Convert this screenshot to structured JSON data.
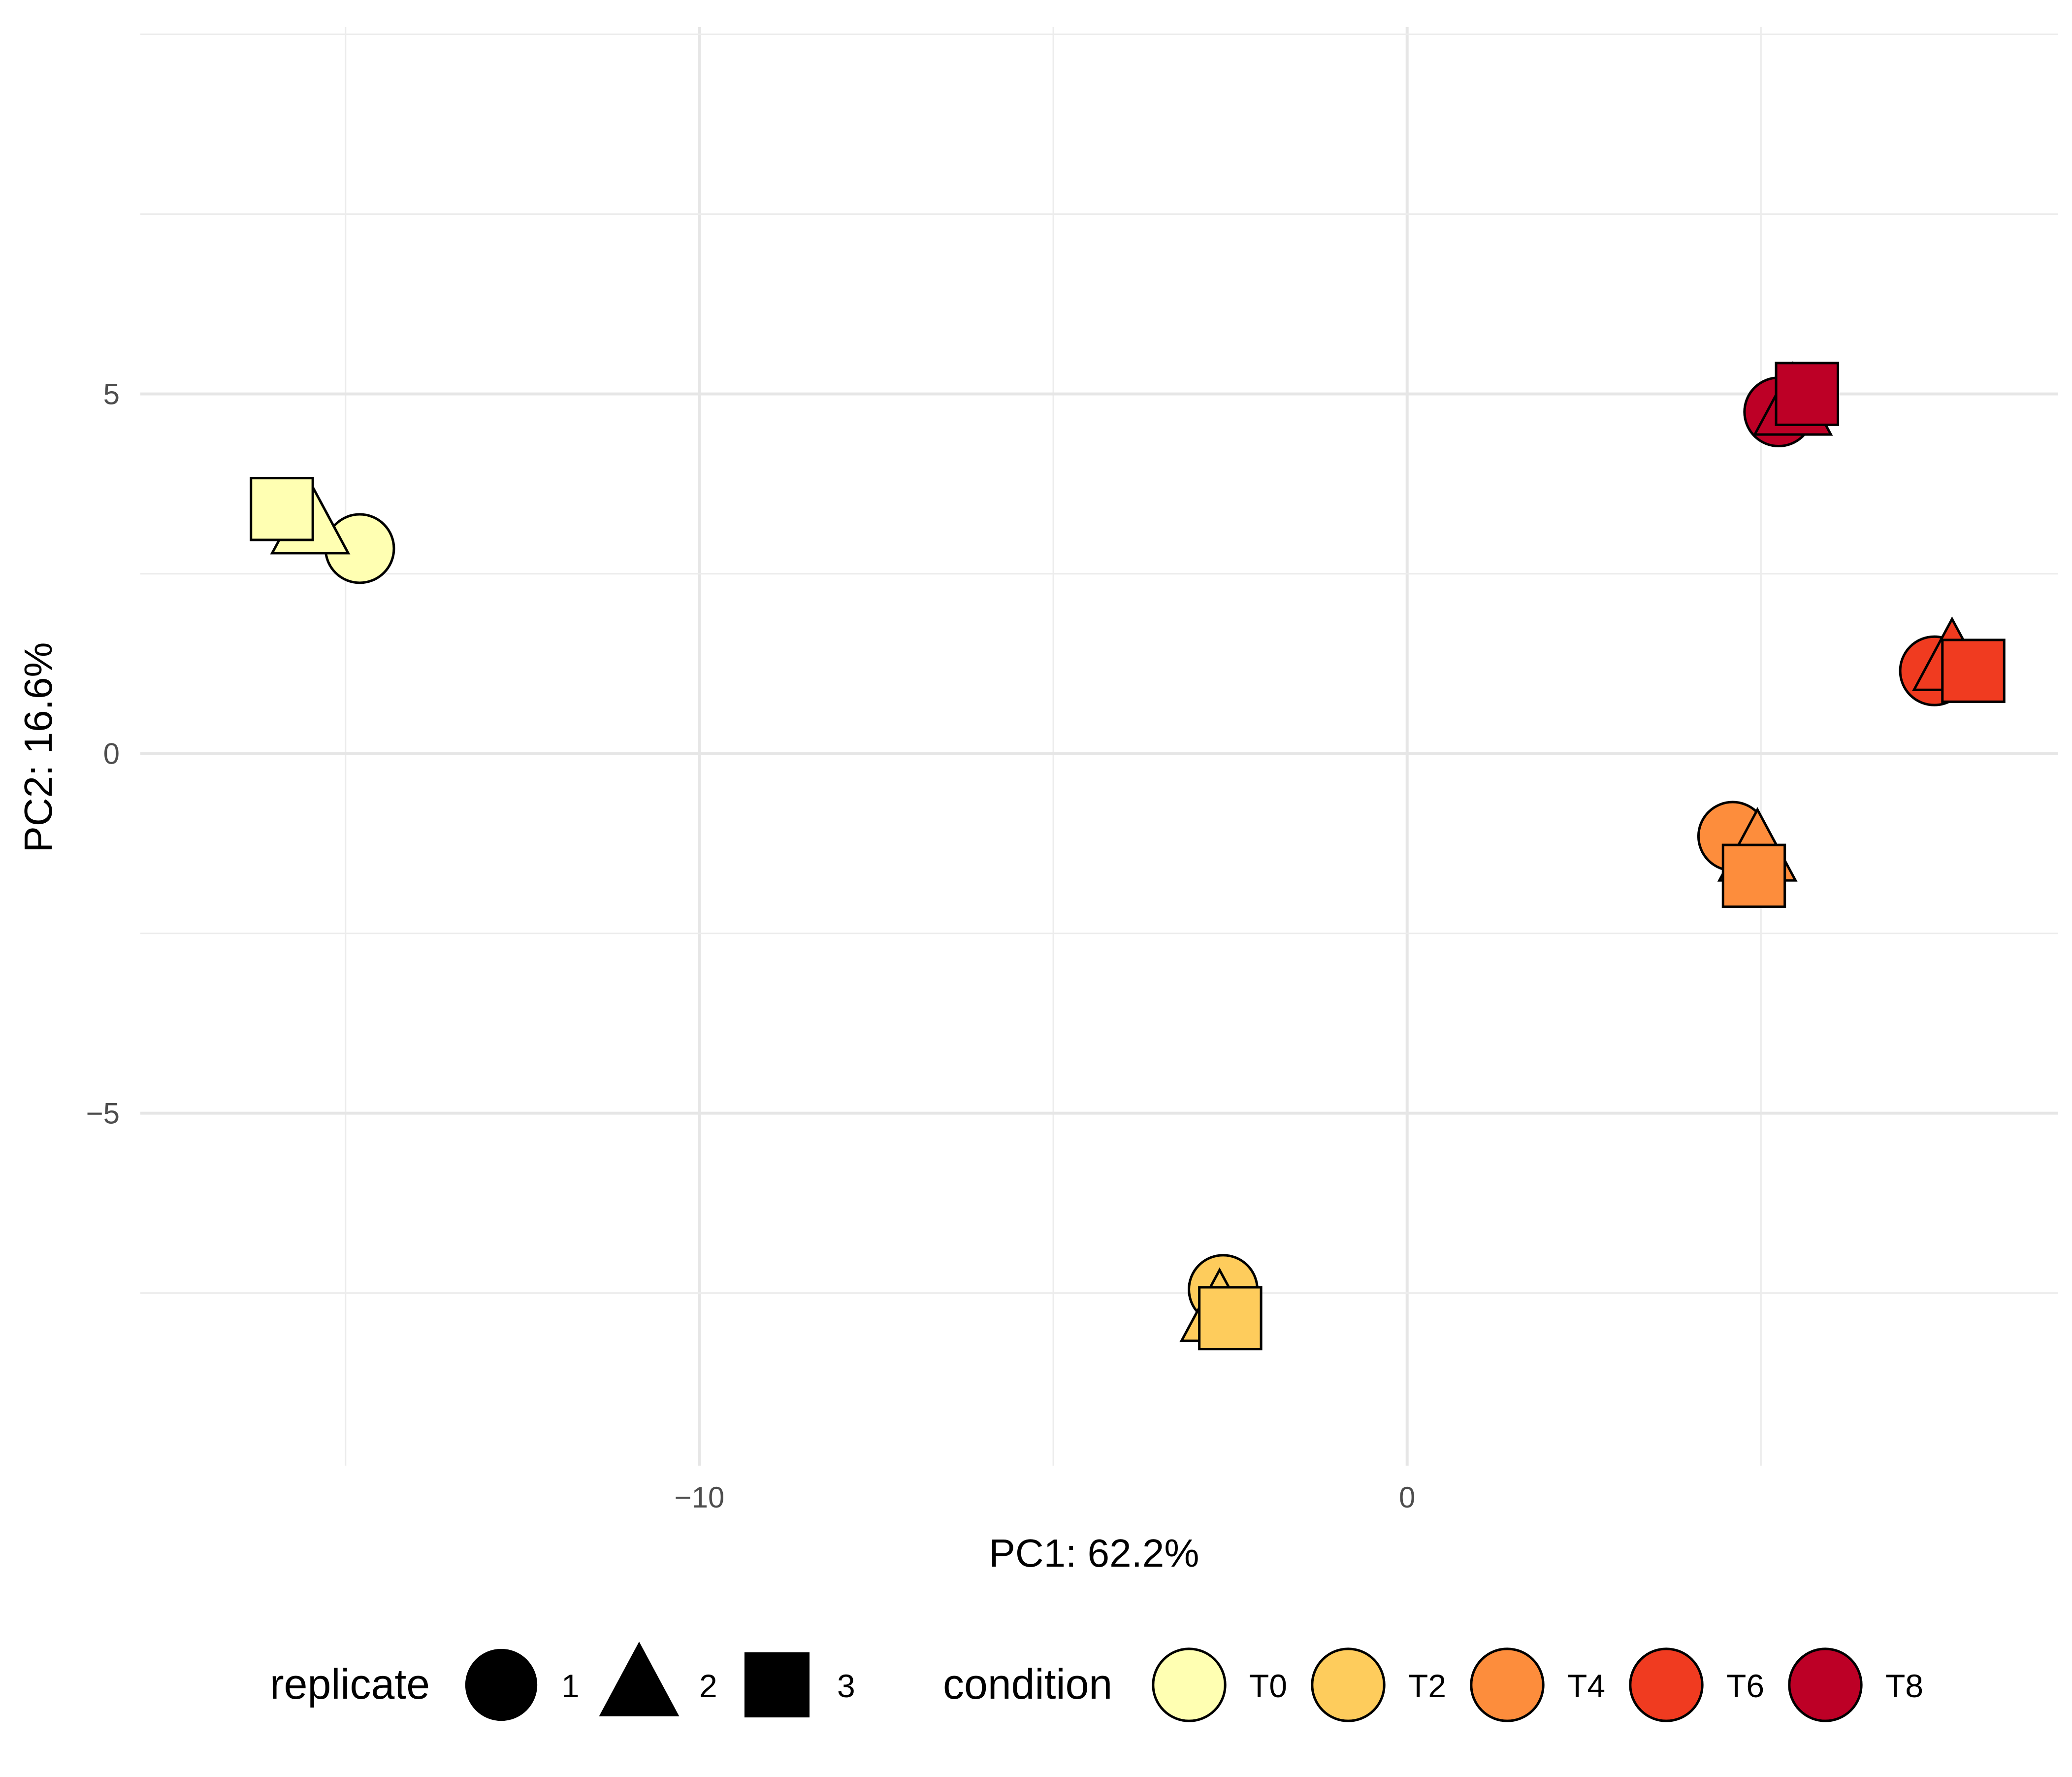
{
  "chart_data": {
    "type": "scatter",
    "title": "",
    "xlabel": "PC1: 62.2%",
    "ylabel": "PC2: 16.6%",
    "xlim": [
      -17.9,
      9.2
    ],
    "ylim": [
      -9.9,
      10.1
    ],
    "x_ticks": [
      -10,
      0
    ],
    "x_tick_labels": [
      "−10",
      "0"
    ],
    "y_ticks": [
      -5,
      0,
      5
    ],
    "y_tick_labels": [
      "−5",
      "0",
      "5"
    ],
    "grid": true,
    "legend_position": "bottom",
    "legend": {
      "replicate": {
        "title": "replicate",
        "entries": [
          {
            "label": "1",
            "shape": "circle"
          },
          {
            "label": "2",
            "shape": "triangle"
          },
          {
            "label": "3",
            "shape": "square"
          }
        ]
      },
      "condition": {
        "title": "condition",
        "entries": [
          {
            "label": "T0",
            "color": "#ffffb2"
          },
          {
            "label": "T2",
            "color": "#fecc5c"
          },
          {
            "label": "T4",
            "color": "#fd8d3c"
          },
          {
            "label": "T6",
            "color": "#f03b20"
          },
          {
            "label": "T8",
            "color": "#bd0026"
          }
        ]
      }
    },
    "points": [
      {
        "condition": "T0",
        "replicate": "1",
        "x": -14.8,
        "y": 2.85
      },
      {
        "condition": "T0",
        "replicate": "2",
        "x": -15.5,
        "y": 3.2
      },
      {
        "condition": "T0",
        "replicate": "3",
        "x": -15.9,
        "y": 3.4
      },
      {
        "condition": "T2",
        "replicate": "1",
        "x": -2.6,
        "y": -7.45
      },
      {
        "condition": "T2",
        "replicate": "2",
        "x": -2.65,
        "y": -7.75
      },
      {
        "condition": "T2",
        "replicate": "3",
        "x": -2.5,
        "y": -7.85
      },
      {
        "condition": "T4",
        "replicate": "1",
        "x": 4.6,
        "y": -1.15
      },
      {
        "condition": "T4",
        "replicate": "2",
        "x": 4.95,
        "y": -1.35
      },
      {
        "condition": "T4",
        "replicate": "3",
        "x": 4.9,
        "y": -1.7
      },
      {
        "condition": "T6",
        "replicate": "1",
        "x": 7.45,
        "y": 1.15
      },
      {
        "condition": "T6",
        "replicate": "2",
        "x": 7.7,
        "y": 1.3
      },
      {
        "condition": "T6",
        "replicate": "3",
        "x": 8.0,
        "y": 1.15
      },
      {
        "condition": "T8",
        "replicate": "1",
        "x": 5.25,
        "y": 4.75
      },
      {
        "condition": "T8",
        "replicate": "2",
        "x": 5.45,
        "y": 4.85
      },
      {
        "condition": "T8",
        "replicate": "3",
        "x": 5.65,
        "y": 5.0
      }
    ]
  }
}
